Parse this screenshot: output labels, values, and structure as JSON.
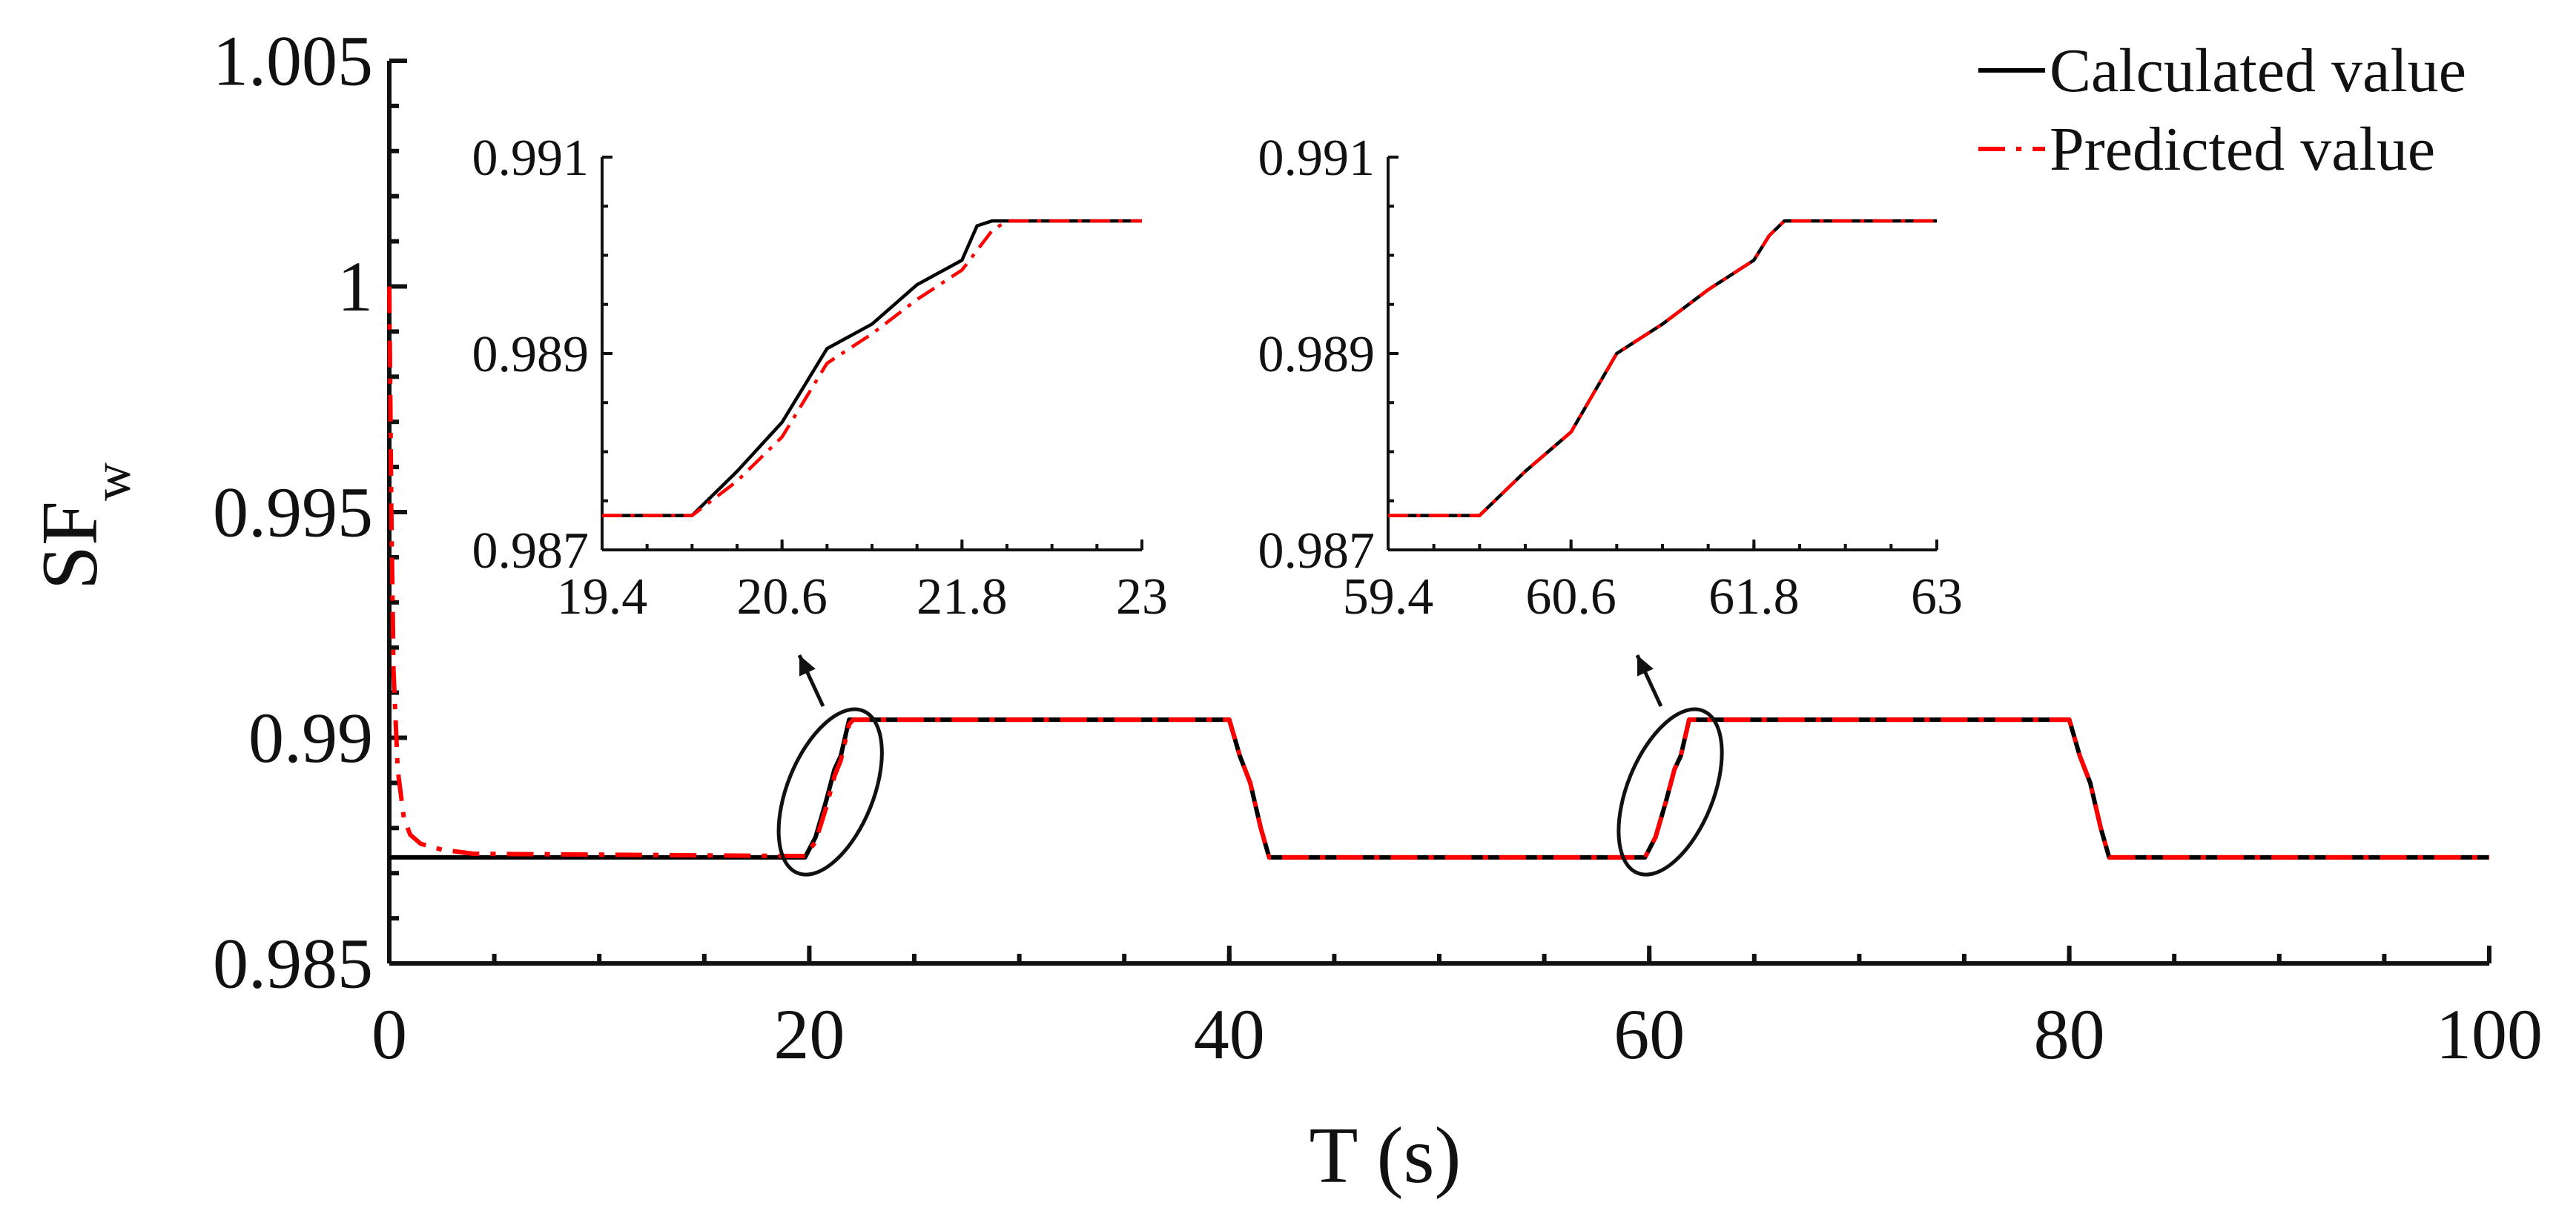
{
  "chart_data": [
    {
      "type": "line",
      "role": "main",
      "xlabel": "T (s)",
      "ylabel": "SF",
      "ylabel_sub": "w",
      "xlim": [
        0,
        100
      ],
      "ylim": [
        0.985,
        1.005
      ],
      "xticks": [
        "0",
        "20",
        "40",
        "60",
        "80",
        "100"
      ],
      "yticks": [
        "0.985",
        "0.99",
        "0.995",
        "1",
        "1.005"
      ],
      "grid": false,
      "legend_position": "top-right",
      "series": [
        {
          "name": "Calculated value",
          "color": "#000000",
          "style": "solid",
          "x": [
            0,
            19.8,
            20.3,
            20.8,
            21.2,
            21.5,
            21.9,
            22.0,
            40,
            40.5,
            41.0,
            41.5,
            41.9,
            42.0,
            59.8,
            60.3,
            60.8,
            61.2,
            61.5,
            61.9,
            62.0,
            80,
            80.5,
            81.0,
            81.5,
            81.9,
            82.0,
            100
          ],
          "y": [
            0.98735,
            0.98735,
            0.9878,
            0.9886,
            0.9893,
            0.9896,
            0.9904,
            0.9904,
            0.9904,
            0.9896,
            0.989,
            0.988,
            0.98735,
            0.98735,
            0.98735,
            0.9878,
            0.9886,
            0.9893,
            0.9896,
            0.9904,
            0.9904,
            0.9904,
            0.9896,
            0.989,
            0.988,
            0.98735,
            0.98735,
            0.98735
          ]
        },
        {
          "name": "Predicted value",
          "color": "#ff0000",
          "style": "dash-dot",
          "x": [
            0,
            0.1,
            0.2,
            0.4,
            0.7,
            1.0,
            1.5,
            2.5,
            4,
            19.8,
            20.3,
            20.8,
            21.2,
            21.5,
            21.9,
            22.1,
            40,
            40.5,
            41.0,
            41.5,
            41.9,
            42.0,
            59.8,
            60.3,
            60.8,
            61.2,
            61.5,
            61.9,
            62.0,
            80,
            80.5,
            81.0,
            81.5,
            81.9,
            82.0,
            100
          ],
          "y": [
            1.0,
            0.995,
            0.9915,
            0.9893,
            0.9882,
            0.98785,
            0.98765,
            0.98752,
            0.98743,
            0.98738,
            0.9877,
            0.98845,
            0.98915,
            0.9895,
            0.9903,
            0.9904,
            0.9904,
            0.9896,
            0.989,
            0.988,
            0.98735,
            0.98735,
            0.98735,
            0.9878,
            0.9886,
            0.9893,
            0.9896,
            0.9904,
            0.9904,
            0.9904,
            0.9896,
            0.989,
            0.988,
            0.98735,
            0.98735,
            0.98735
          ]
        }
      ]
    },
    {
      "type": "line",
      "role": "inset-left",
      "xlim": [
        19.4,
        23
      ],
      "ylim": [
        0.987,
        0.991
      ],
      "xticks": [
        "19.4",
        "20.6",
        "21.8",
        "23"
      ],
      "yticks": [
        "0.987",
        "0.989",
        "0.991"
      ],
      "series": [
        {
          "name": "Calculated value",
          "color": "#000000",
          "style": "solid",
          "x": [
            19.4,
            20.0,
            20.3,
            20.6,
            20.9,
            21.2,
            21.5,
            21.8,
            21.9,
            22.0,
            23.0
          ],
          "y": [
            0.98735,
            0.98735,
            0.9878,
            0.9883,
            0.98905,
            0.9893,
            0.9897,
            0.98995,
            0.9903,
            0.99035,
            0.99035
          ]
        },
        {
          "name": "Predicted value",
          "color": "#ff0000",
          "style": "dash-dot",
          "x": [
            19.4,
            20.0,
            20.3,
            20.6,
            20.9,
            21.2,
            21.5,
            21.8,
            21.9,
            22.0,
            22.1,
            23.0
          ],
          "y": [
            0.98735,
            0.98735,
            0.9877,
            0.98815,
            0.9889,
            0.9892,
            0.98955,
            0.98985,
            0.99005,
            0.99025,
            0.99035,
            0.99035
          ]
        }
      ]
    },
    {
      "type": "line",
      "role": "inset-right",
      "xlim": [
        59.4,
        63
      ],
      "ylim": [
        0.987,
        0.991
      ],
      "xticks": [
        "59.4",
        "60.6",
        "61.8",
        "63"
      ],
      "yticks": [
        "0.987",
        "0.989",
        "0.991"
      ],
      "series": [
        {
          "name": "Calculated value",
          "color": "#000000",
          "style": "solid",
          "x": [
            59.4,
            60.0,
            60.3,
            60.6,
            60.9,
            61.2,
            61.5,
            61.8,
            61.9,
            62.0,
            63.0
          ],
          "y": [
            0.98735,
            0.98735,
            0.9878,
            0.9882,
            0.989,
            0.9893,
            0.98965,
            0.98995,
            0.9902,
            0.99035,
            0.99035
          ]
        },
        {
          "name": "Predicted value",
          "color": "#ff0000",
          "style": "dash-dot",
          "x": [
            59.4,
            60.0,
            60.3,
            60.6,
            60.9,
            61.2,
            61.5,
            61.8,
            61.9,
            62.0,
            63.0
          ],
          "y": [
            0.98735,
            0.98735,
            0.9878,
            0.9882,
            0.989,
            0.9893,
            0.98965,
            0.98995,
            0.9902,
            0.99035,
            0.99035
          ]
        }
      ]
    }
  ]
}
